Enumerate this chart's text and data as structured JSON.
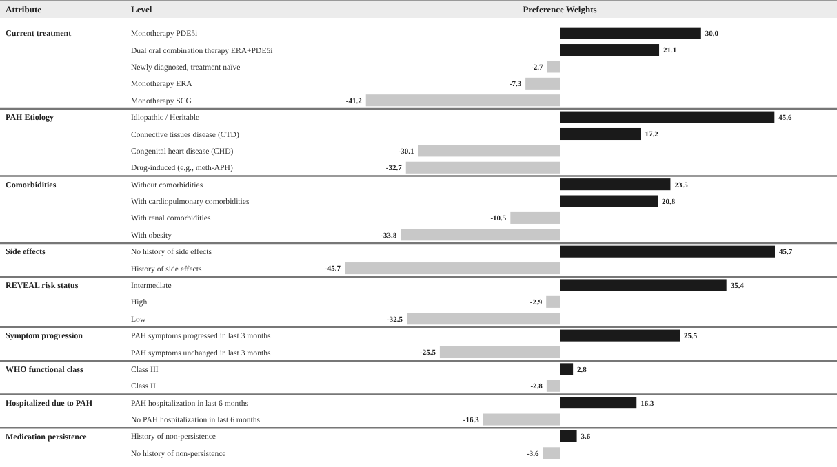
{
  "chart_data": {
    "type": "bar",
    "orientation": "horizontal",
    "xlabel": "Preference Weights",
    "categories": [
      "Monotherapy PDE5i",
      "Dual oral combination therapy ERA+PDE5i",
      "Newly diagnosed, treatment naïve",
      "Monotherapy ERA",
      "Monotherapy SCG",
      "Idiopathic / Heritable",
      "Connective tissues disease (CTD)",
      "Congenital heart disease (CHD)",
      "Drug-induced (e.g., meth-APH)",
      "Without comorbidities",
      "With cardiopulmonary comorbidities",
      "With renal comorbidities",
      "With obesity",
      "No history of side effects",
      "History of side effects",
      "Intermediate",
      "High",
      "Low",
      "PAH symptoms progressed in last 3 months",
      "PAH symptoms unchanged in last 3 months",
      "Class III",
      "Class II",
      "PAH hospitalization in last 6 months",
      "No PAH hospitalization in last 6 months",
      "History of non-persistence",
      "No history of non-persistence"
    ],
    "values": [
      30.0,
      21.1,
      -2.7,
      -7.3,
      -41.2,
      45.6,
      17.2,
      -30.1,
      -32.7,
      23.5,
      20.8,
      -10.5,
      -33.8,
      45.7,
      -45.7,
      35.4,
      -2.9,
      -32.5,
      25.5,
      -25.5,
      2.8,
      -2.8,
      16.3,
      -16.3,
      3.6,
      -3.6
    ],
    "value_labels": [
      "30.0",
      "21.1",
      "-2.7",
      "-7.3",
      "-41.2",
      "45.6",
      "17.2",
      "-30.1",
      "-32.7",
      "23.5",
      "20.8",
      "-10.5",
      "-33.8",
      "45.7",
      "-45.7",
      "35.4",
      "-2.9",
      "-32.5",
      "25.5",
      "-25.5",
      "2.8",
      "-2.8",
      "16.3",
      "-16.3",
      "3.6",
      "-3.6"
    ],
    "colors": [
      "#1a1a1a",
      "#1a1a1a",
      "#c8c8c8",
      "#c8c8c8",
      "#c8c8c8",
      "#1a1a1a",
      "#1a1a1a",
      "#c8c8c8",
      "#c8c8c8",
      "#1a1a1a",
      "#1a1a1a",
      "#c8c8c8",
      "#c8c8c8",
      "#1a1a1a",
      "#c8c8c8",
      "#1a1a1a",
      "#c8c8c8",
      "#c8c8c8",
      "#1a1a1a",
      "#c8c8c8",
      "#1a1a1a",
      "#c8c8c8",
      "#1a1a1a",
      "#c8c8c8",
      "#1a1a1a",
      "#c8c8c8"
    ],
    "annotations": [
      "Attribute",
      "Level",
      "Current treatment",
      "PAH Etiology",
      "Comorbidities",
      "Side effects",
      "REVEAL risk status",
      "Symptom progression",
      "WHO functional class",
      "Hospitalized due to PAH",
      "Medication persistence"
    ]
  }
}
